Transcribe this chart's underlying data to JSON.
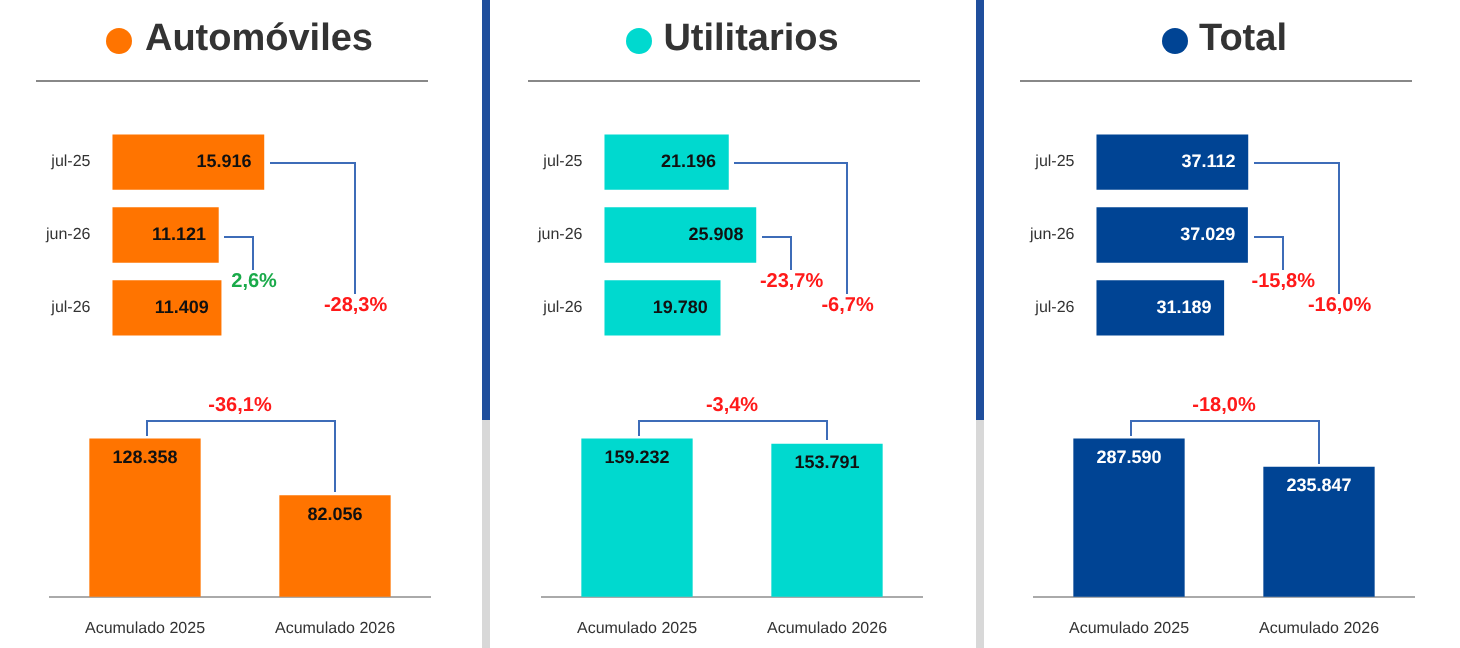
{
  "chart_data": [
    {
      "type": "bar",
      "orientation": "horizontal",
      "title": "Automóviles",
      "color": "#ff7400",
      "categories": [
        "jul-25",
        "jun-26",
        "jul-26"
      ],
      "values": [
        15916,
        11121,
        11409
      ],
      "value_labels": [
        "15.916",
        "11.121",
        "11.409"
      ],
      "annotations": [
        "2,6%",
        "-28,3%"
      ]
    },
    {
      "type": "bar",
      "orientation": "horizontal",
      "title": "Utilitarios",
      "color": "#00d9cf",
      "categories": [
        "jul-25",
        "jun-26",
        "jul-26"
      ],
      "values": [
        21196,
        25908,
        19780
      ],
      "value_labels": [
        "21.196",
        "25.908",
        "19.780"
      ],
      "annotations": [
        "-23,7%",
        "-6,7%"
      ]
    },
    {
      "type": "bar",
      "orientation": "horizontal",
      "title": "Total",
      "color": "#004494",
      "categories": [
        "jul-25",
        "jun-26",
        "jul-26"
      ],
      "values": [
        37112,
        37029,
        31189
      ],
      "value_labels": [
        "37.112",
        "37.029",
        "31.189"
      ],
      "annotations": [
        "-15,8%",
        "-16,0%"
      ]
    },
    {
      "type": "bar",
      "color": "#ff7400",
      "categories": [
        "Acumulado 2025",
        "Acumulado 2026"
      ],
      "values": [
        128358,
        82056
      ],
      "value_labels": [
        "128.358",
        "82.056"
      ],
      "annotations": [
        "-36,1%"
      ]
    },
    {
      "type": "bar",
      "color": "#00d9cf",
      "categories": [
        "Acumulado 2025",
        "Acumulado 2026"
      ],
      "values": [
        159232,
        153791
      ],
      "value_labels": [
        "159.232",
        "153.791"
      ],
      "annotations": [
        "-3,4%"
      ]
    },
    {
      "type": "bar",
      "color": "#004494",
      "categories": [
        "Acumulado 2025",
        "Acumulado 2026"
      ],
      "values": [
        287590,
        235847
      ],
      "value_labels": [
        "287.590",
        "235.847"
      ],
      "annotations": [
        "-18,0%"
      ]
    }
  ]
}
